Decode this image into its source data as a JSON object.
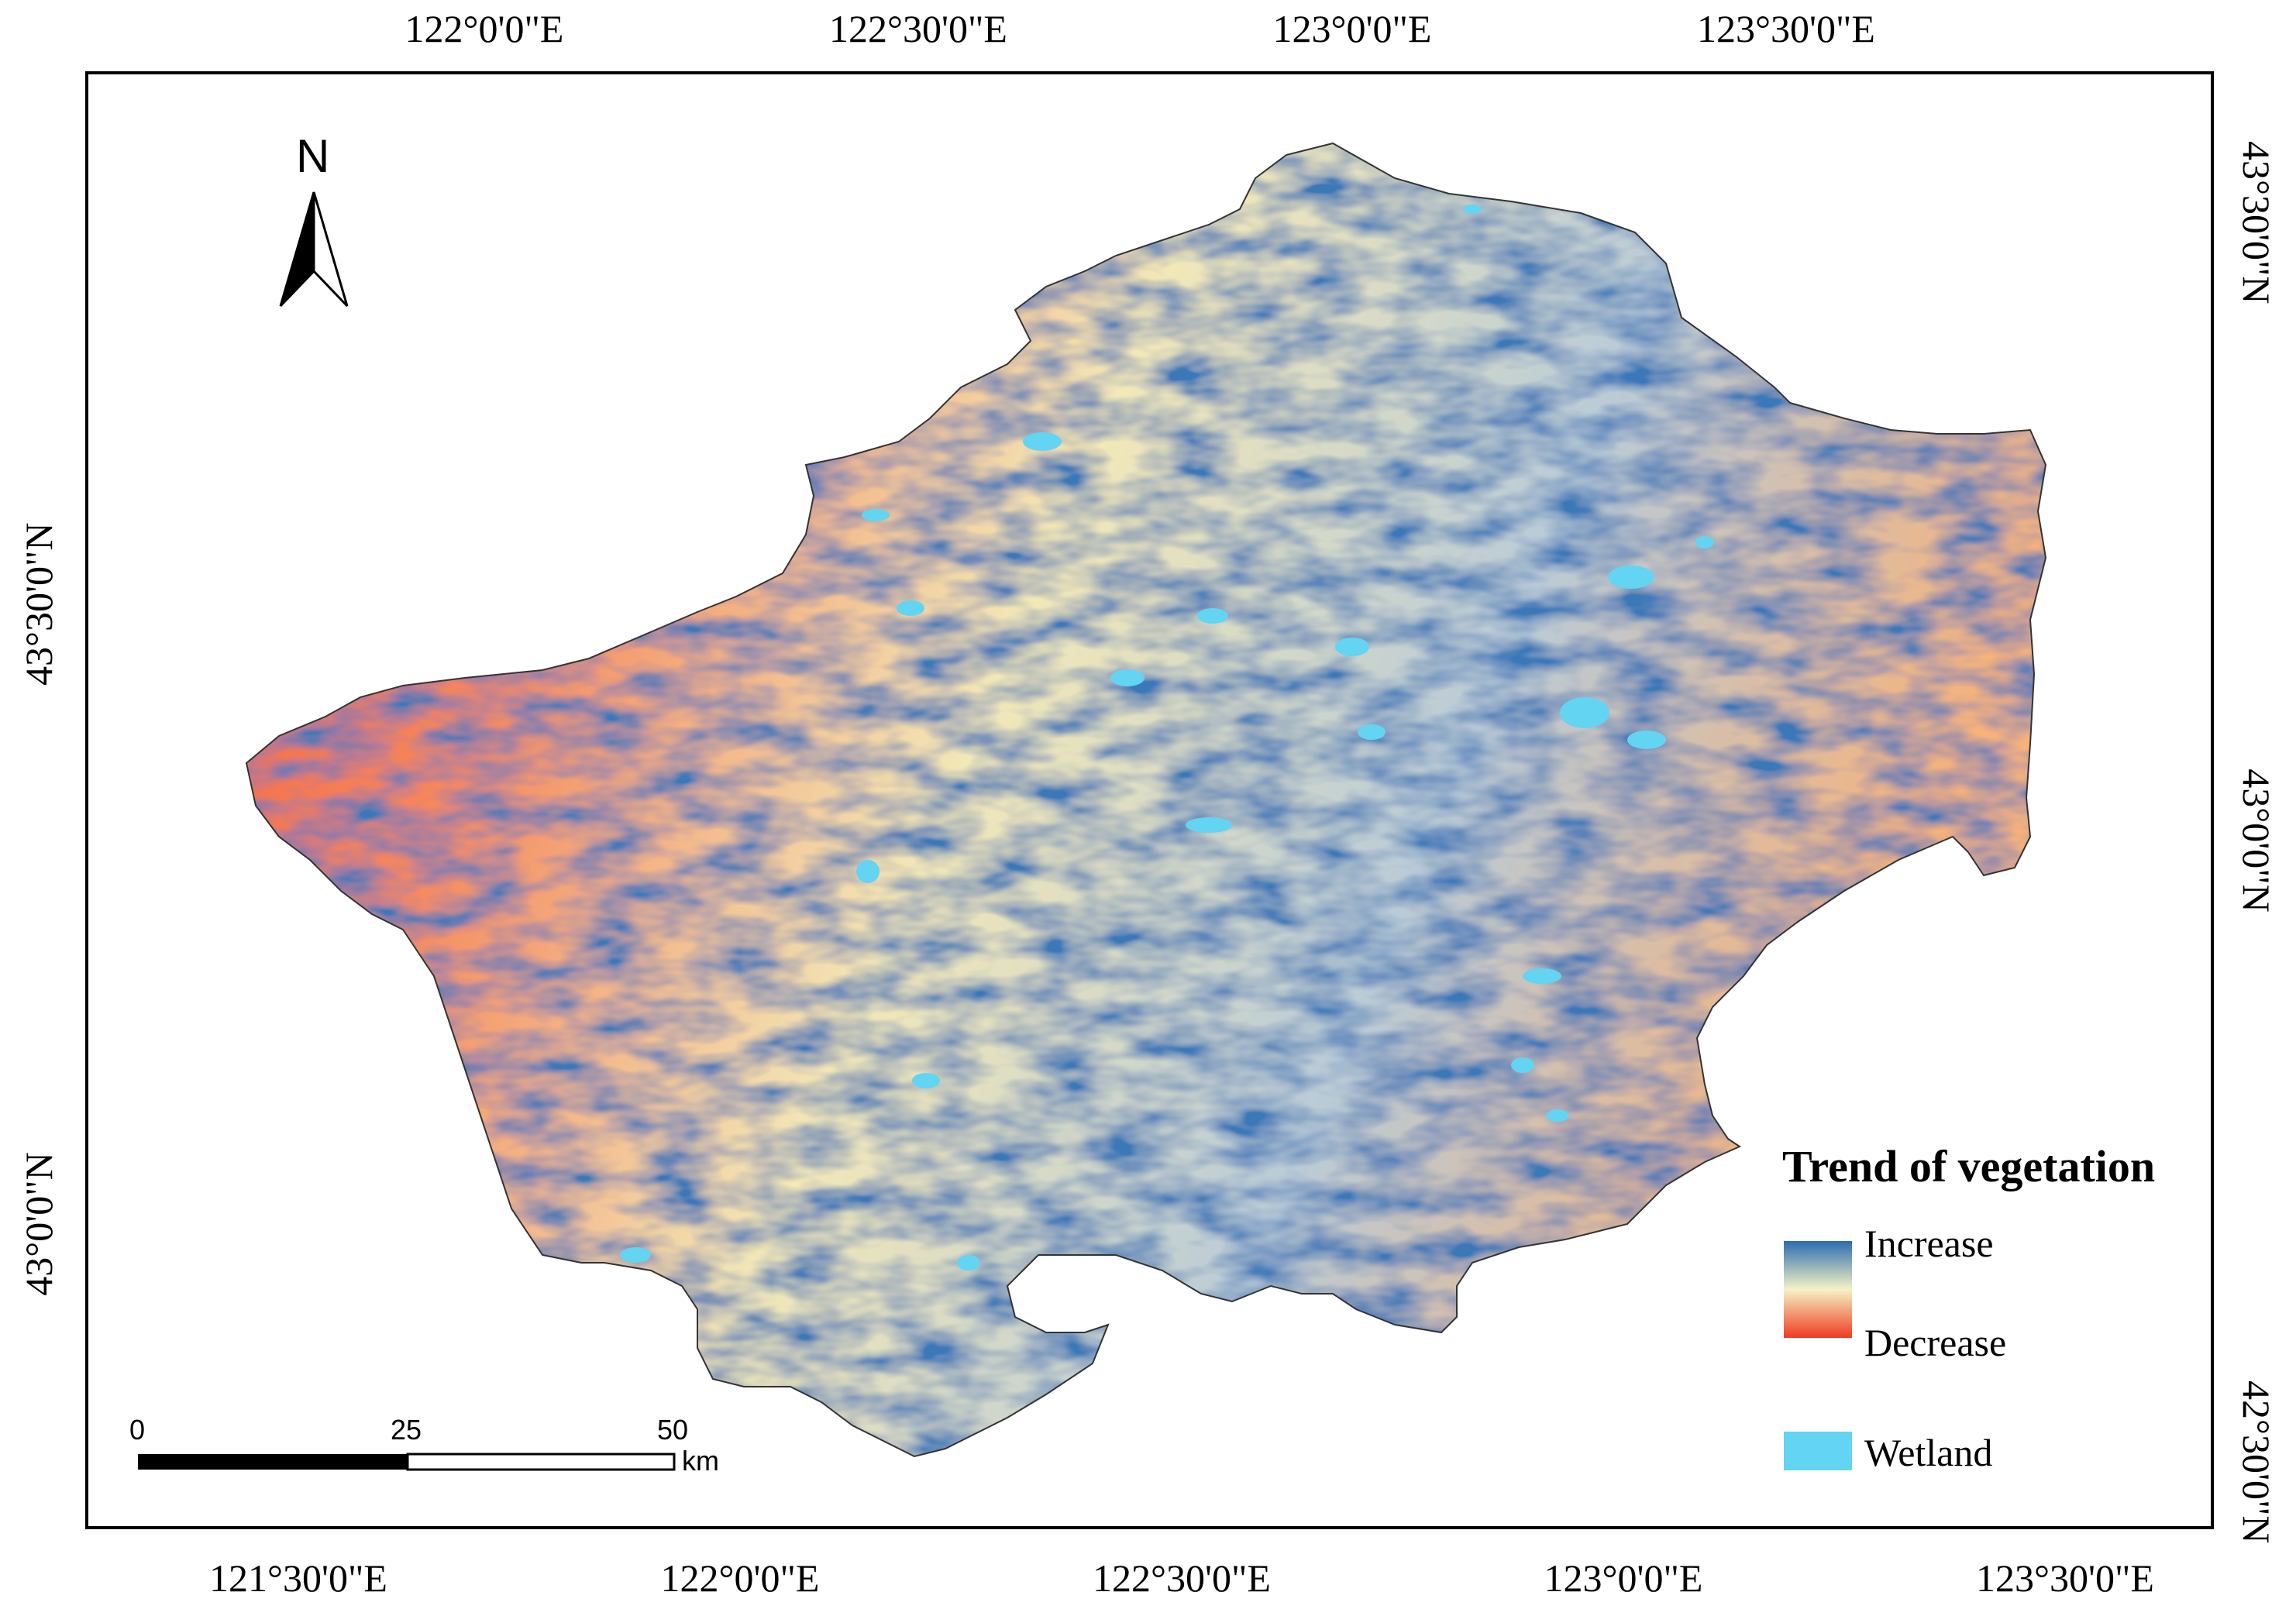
{
  "map": {
    "top_ticks": [
      "122°0'0\"E",
      "122°30'0\"E",
      "123°0'0\"E",
      "123°30'0\"E"
    ],
    "bottom_ticks": [
      "121°30'0\"E",
      "122°0'0\"E",
      "122°30'0\"E",
      "123°0'0\"E",
      "123°30'0\"E"
    ],
    "left_ticks": [
      "43°30'0\"N",
      "43°0'0\"N"
    ],
    "right_ticks": [
      "43°30'0\"N",
      "43°0'0\"N",
      "42°30'0\"N"
    ],
    "north_arrow": {
      "label": "N",
      "icon": "north-arrow-icon"
    }
  },
  "scale_bar": {
    "labels": [
      "0",
      "25",
      "50"
    ],
    "unit": "km"
  },
  "legend": {
    "title": "Trend of vegetation",
    "gradient_top": "Increase",
    "gradient_bottom": "Decrease",
    "wetland": "Wetland",
    "colors": {
      "increase": "#2b6cb0",
      "neutral": "#f5f3c4",
      "decrease": "#f03b20",
      "wetland": "#63d4f2"
    }
  }
}
